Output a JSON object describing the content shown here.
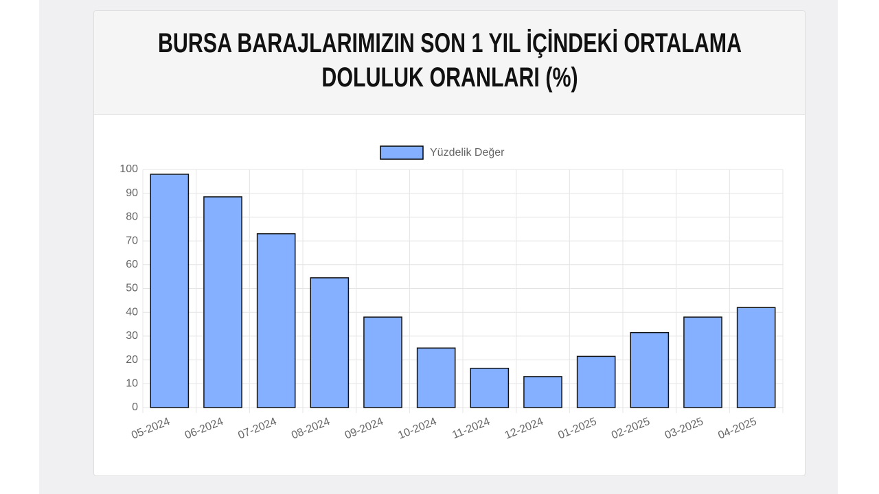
{
  "chart_data": {
    "type": "bar",
    "title": "BURSA BARAJLARIMIZIN SON 1 YIL İÇİNDEKİ ORTALAMA DOLULUK ORANLARI (%)",
    "categories": [
      "05-2024",
      "06-2024",
      "07-2024",
      "08-2024",
      "09-2024",
      "10-2024",
      "11-2024",
      "12-2024",
      "01-2025",
      "02-2025",
      "03-2025",
      "04-2025"
    ],
    "series": [
      {
        "name": "Yüzdelik Değer",
        "color": "#84b0ff",
        "values": [
          98,
          88.5,
          73,
          54.5,
          38,
          25,
          16.5,
          13,
          21.5,
          31.5,
          38,
          42
        ]
      }
    ],
    "ylim": [
      0,
      100
    ],
    "yticks": [
      0,
      10,
      20,
      30,
      40,
      50,
      60,
      70,
      80,
      90,
      100
    ],
    "grid": true,
    "legend": "top"
  }
}
